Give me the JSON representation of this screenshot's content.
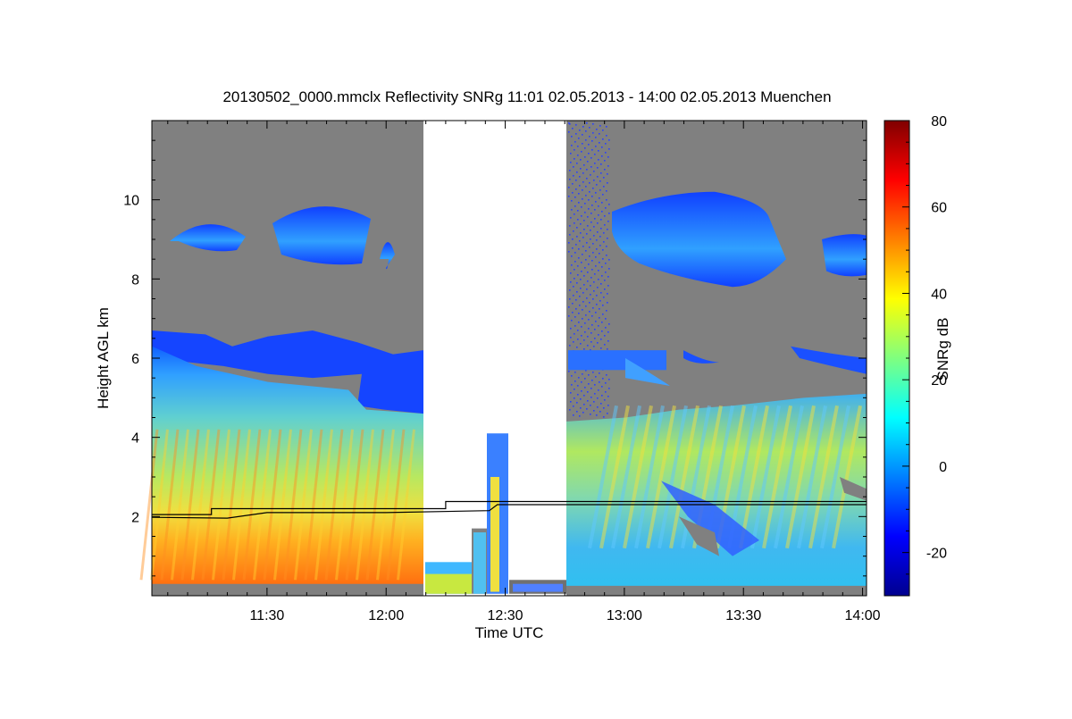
{
  "chart_data": {
    "type": "heatmap",
    "title": "20130502_0000.mmclx Reflectivity SNRg   11:01 02.05.2013 - 14:00 02.05.2013 Muenchen",
    "xlabel": "Time UTC",
    "ylabel": "Height AGL km",
    "xlim": [
      "11:01",
      "14:01"
    ],
    "ylim": [
      0,
      12
    ],
    "x_ticks": [
      "11:30",
      "12:00",
      "12:30",
      "13:00",
      "13:30",
      "14:00"
    ],
    "y_ticks": [
      "2",
      "4",
      "6",
      "8",
      "10"
    ],
    "colorbar": {
      "label": "SNRg dB",
      "range": [
        -30,
        80
      ],
      "ticks": [
        "-20",
        "0",
        "20",
        "40",
        "60",
        "80"
      ],
      "colormap": "jet"
    },
    "background_color": "#808080",
    "no_data_interval": [
      "12:10",
      "12:46"
    ],
    "lines": [
      {
        "points": [
          [
            "11:01",
            2.05
          ],
          [
            "11:16",
            2.05
          ],
          [
            "11:16",
            2.2
          ],
          [
            "12:15",
            2.2
          ],
          [
            "12:15",
            2.38
          ],
          [
            "14:01",
            2.38
          ]
        ]
      },
      {
        "points": [
          [
            "11:01",
            1.98
          ],
          [
            "11:20",
            1.96
          ],
          [
            "11:30",
            2.1
          ],
          [
            "12:00",
            2.1
          ],
          [
            "12:26",
            2.15
          ],
          [
            "12:28",
            2.3
          ],
          [
            "14:01",
            2.3
          ]
        ]
      }
    ]
  }
}
